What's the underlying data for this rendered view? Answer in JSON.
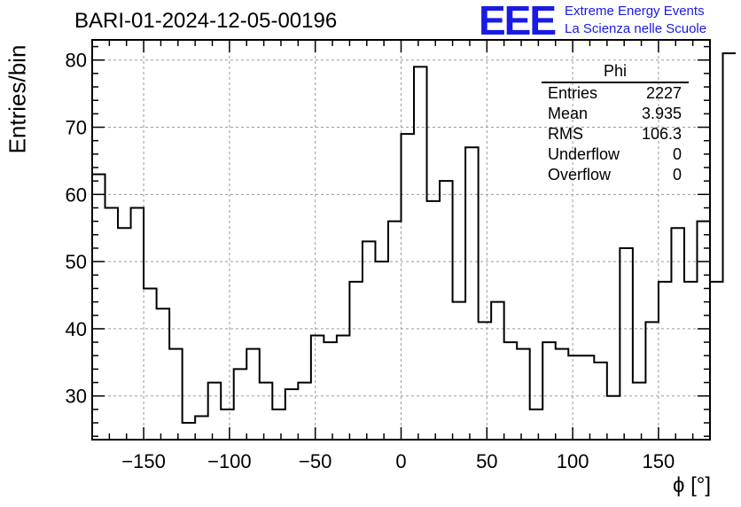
{
  "header": {
    "title": "BARI-01-2024-12-05-00196",
    "logo_text": "EEE",
    "logo_line1": "Extreme Energy Events",
    "logo_line2": "La Scienza nelle Scuole"
  },
  "stats_box": {
    "title": "Phi",
    "rows": [
      {
        "label": "Entries",
        "value": "2227"
      },
      {
        "label": "Mean",
        "value": "3.935"
      },
      {
        "label": "RMS",
        "value": "106.3"
      },
      {
        "label": "Underflow",
        "value": "0"
      },
      {
        "label": "Overflow",
        "value": "0"
      }
    ]
  },
  "chart_data": {
    "type": "bar",
    "style": "step-histogram",
    "title": "BARI-01-2024-12-05-00196",
    "xlabel": "ϕ [°]",
    "ylabel": "Entries/bin",
    "xlim": [
      -180,
      180
    ],
    "ylim": [
      23.5,
      83
    ],
    "bin_width": 7.5,
    "grid": true,
    "x_ticks": [
      -150,
      -100,
      -50,
      0,
      50,
      100,
      150
    ],
    "x_tick_labels": [
      "−150",
      "−100",
      "−50",
      "0",
      "50",
      "100",
      "150"
    ],
    "y_ticks": [
      30,
      40,
      50,
      60,
      70,
      80
    ],
    "y_tick_labels": [
      "30",
      "40",
      "50",
      "60",
      "70",
      "80"
    ],
    "values": [
      63,
      58,
      55,
      58,
      46,
      43,
      37,
      26,
      27,
      32,
      28,
      34,
      37,
      32,
      28,
      31,
      32,
      39,
      38,
      39,
      47,
      53,
      50,
      56,
      69,
      79,
      59,
      62,
      44,
      67,
      41,
      44,
      38,
      37,
      28,
      38,
      37,
      36,
      36,
      35,
      30,
      52,
      32,
      41,
      47,
      55,
      47,
      56,
      47,
      81
    ],
    "line_color": "#000000",
    "grid_color": "#9a9a9a"
  }
}
